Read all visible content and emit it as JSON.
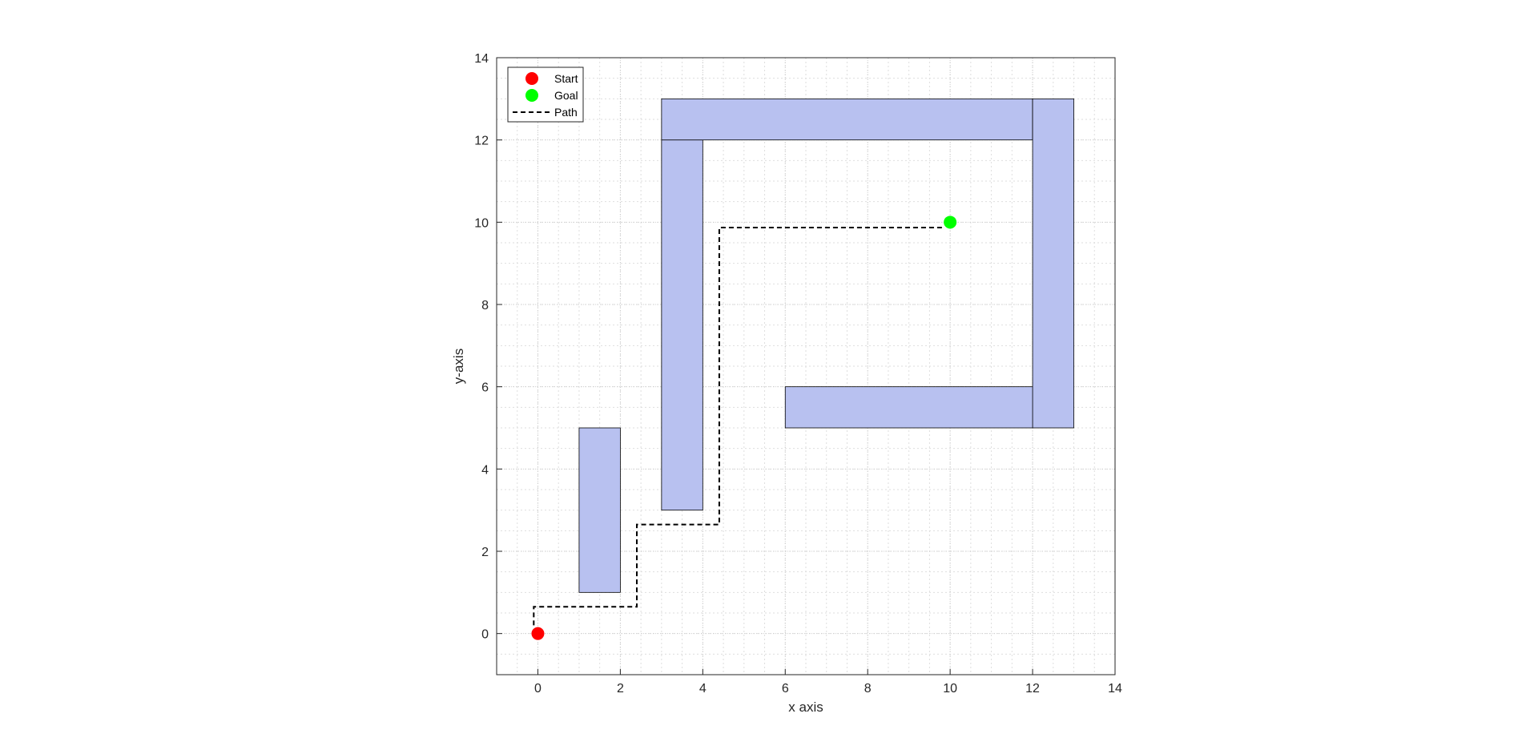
{
  "chart_data": {
    "type": "scatter",
    "title": "",
    "xlabel": "x axis",
    "ylabel": "y-axis",
    "xlim": [
      -1,
      14
    ],
    "ylim": [
      -1,
      14
    ],
    "x_ticks": [
      0,
      2,
      4,
      6,
      8,
      10,
      12,
      14
    ],
    "y_ticks": [
      0,
      2,
      4,
      6,
      8,
      10,
      12,
      14
    ],
    "x_tick_labels": [
      "0",
      "2",
      "4",
      "6",
      "8",
      "10",
      "12",
      "14"
    ],
    "y_tick_labels": [
      "0",
      "2",
      "4",
      "6",
      "8",
      "10",
      "12",
      "14"
    ],
    "grid": true,
    "minor_grid": true,
    "minor_step": 0.5,
    "legend_position": "top-left",
    "obstacle_color": "#b8c1f0",
    "obstacles": [
      {
        "x0": 1,
        "y0": 1,
        "x1": 2,
        "y1": 5
      },
      {
        "x0": 3,
        "y0": 3,
        "x1": 4,
        "y1": 12
      },
      {
        "x0": 3,
        "y0": 12,
        "x1": 12,
        "y1": 13
      },
      {
        "x0": 12,
        "y0": 5,
        "x1": 13,
        "y1": 13
      },
      {
        "x0": 6,
        "y0": 5,
        "x1": 12,
        "y1": 6
      }
    ],
    "series": [
      {
        "name": "Start",
        "marker": "circle",
        "color": "#ff0000",
        "x": [
          0
        ],
        "y": [
          0
        ]
      },
      {
        "name": "Goal",
        "marker": "circle",
        "color": "#00ff00",
        "x": [
          10
        ],
        "y": [
          10
        ]
      },
      {
        "name": "Path",
        "style": "dashed",
        "color": "#000000",
        "x": [
          -0.1,
          -0.1,
          2.4,
          2.4,
          4.4,
          4.4,
          9.8
        ],
        "y": [
          0.2,
          0.65,
          0.65,
          2.65,
          2.65,
          9.87,
          9.87
        ]
      }
    ]
  }
}
